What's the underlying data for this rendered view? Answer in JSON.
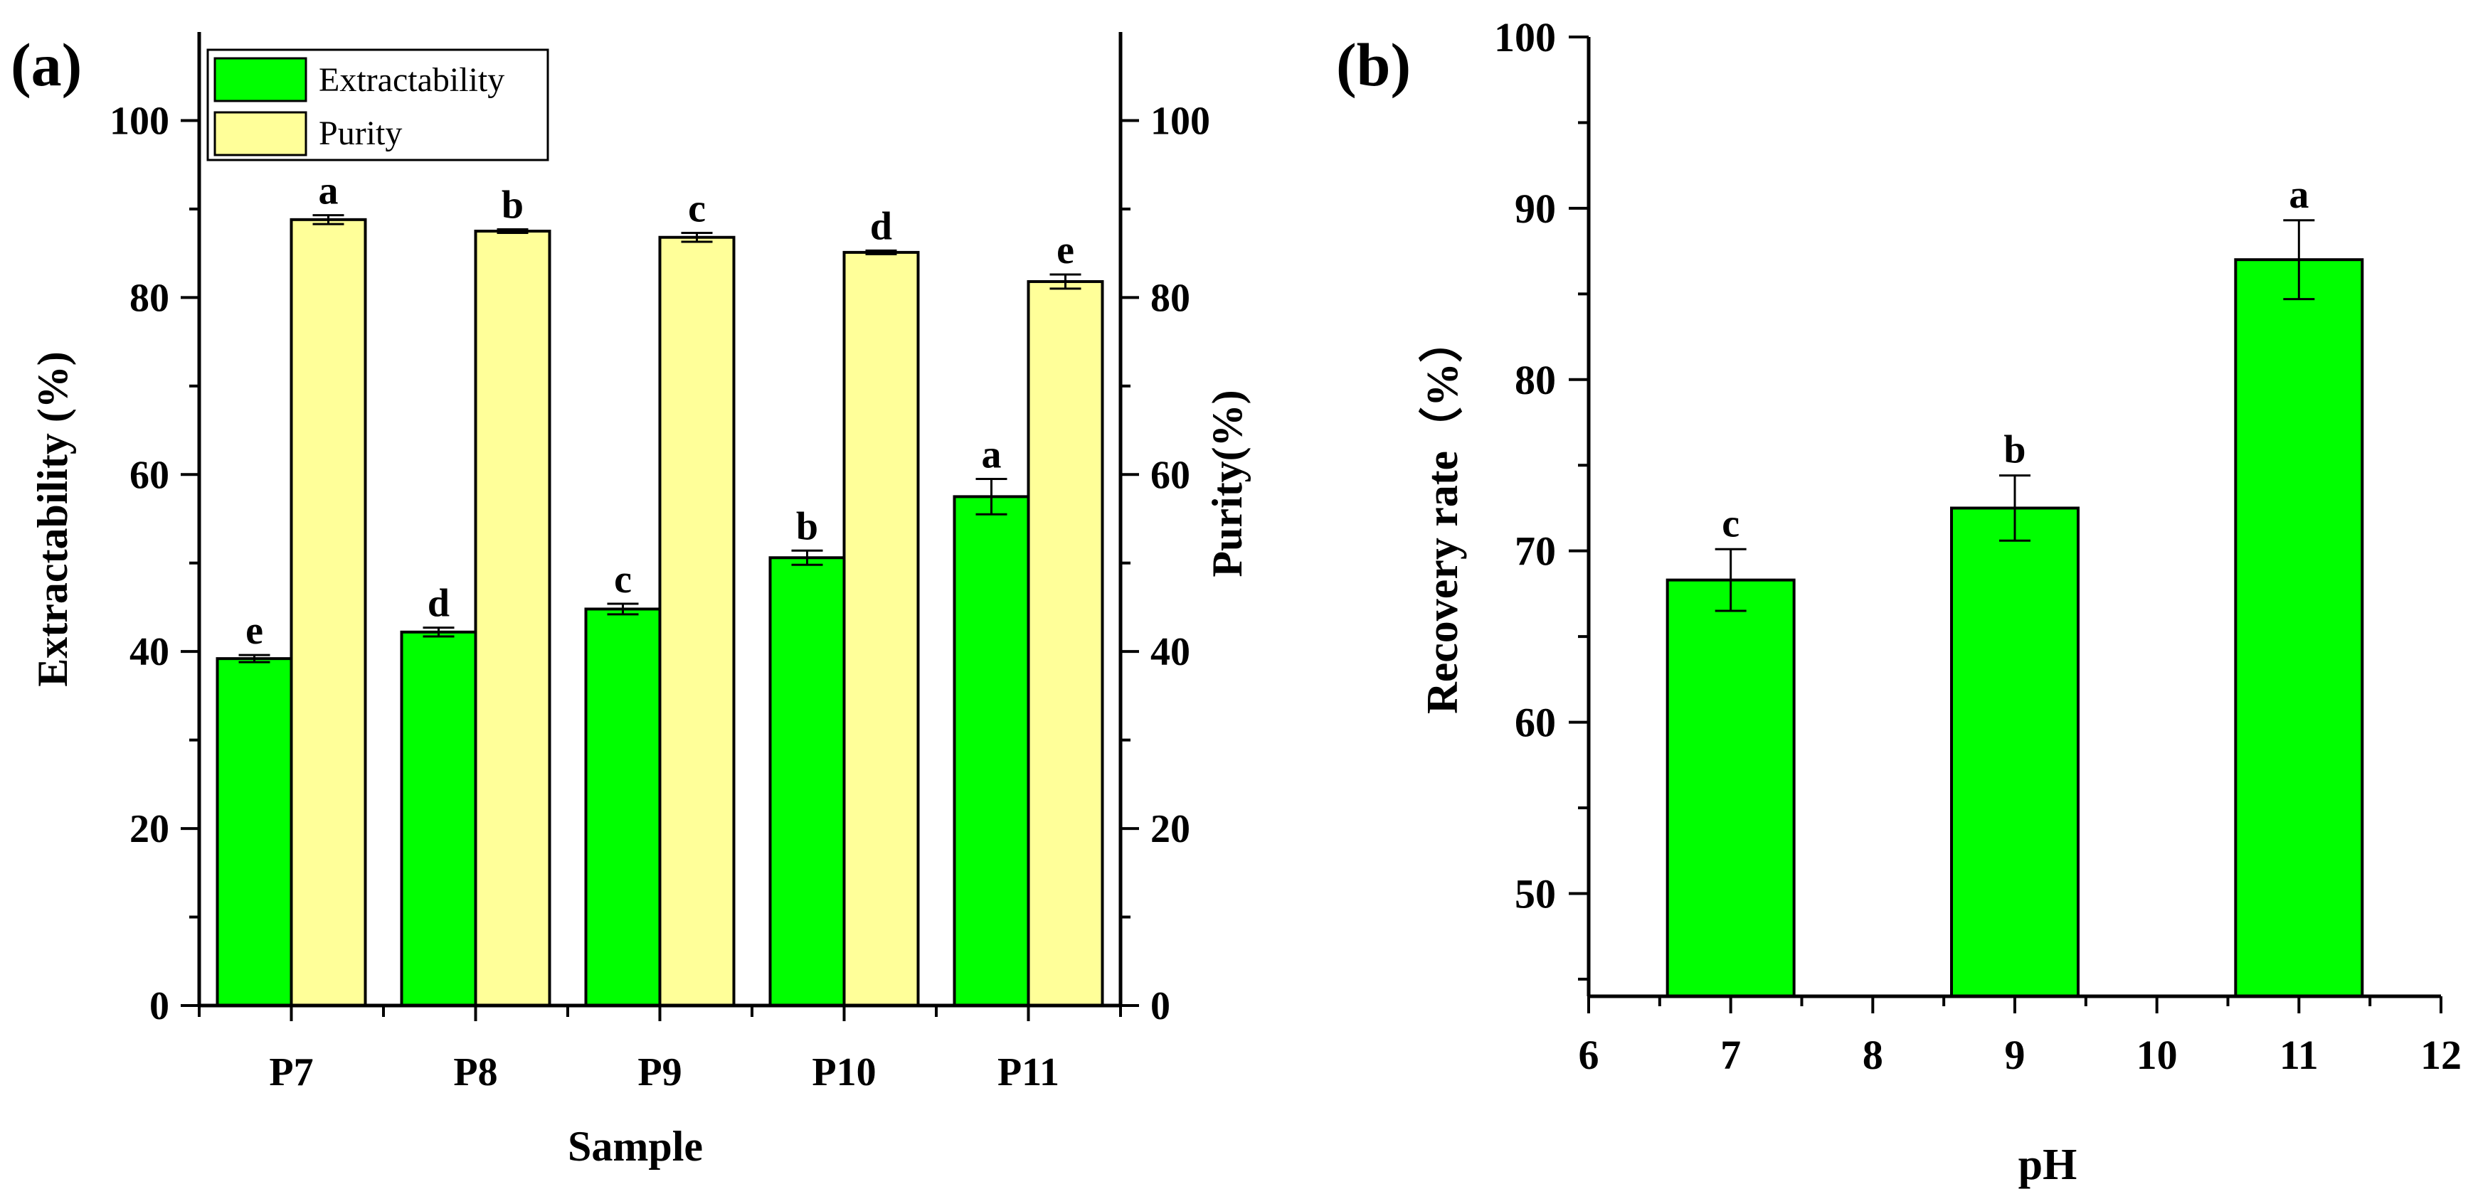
{
  "chart_data": [
    {
      "type": "bar",
      "panel_label": "(a)",
      "xlabel": "Sample",
      "ylabel": "Extractability (%)",
      "ylabel_right": "Purity(%)",
      "categories": [
        "P7",
        "P8",
        "P9",
        "P10",
        "P11"
      ],
      "ylim": [
        0,
        110
      ],
      "yticks": [
        0,
        20,
        40,
        60,
        80,
        100
      ],
      "legend_position": "top-left",
      "series": [
        {
          "name": "Extractability",
          "color": "#00ff00",
          "values": [
            39.2,
            42.2,
            44.8,
            50.6,
            57.5
          ],
          "errors": [
            0.4,
            0.5,
            0.6,
            0.8,
            2.0
          ],
          "labels": [
            "e",
            "d",
            "c",
            "b",
            "a"
          ]
        },
        {
          "name": "Purity",
          "color": "#ffff99",
          "values": [
            88.8,
            87.5,
            86.8,
            85.1,
            81.8
          ],
          "errors": [
            0.5,
            0.2,
            0.5,
            0.2,
            0.8
          ],
          "labels": [
            "a",
            "b",
            "c",
            "d",
            "e"
          ]
        }
      ]
    },
    {
      "type": "bar",
      "panel_label": "(b)",
      "xlabel": "pH",
      "ylabel": "Recovery rate（%）",
      "xlim": [
        6,
        12
      ],
      "xticks": [
        6,
        7,
        8,
        9,
        10,
        11,
        12
      ],
      "ylim": [
        44,
        100
      ],
      "yticks": [
        50,
        60,
        70,
        80,
        90,
        100
      ],
      "series": [
        {
          "name": "Recovery rate",
          "color": "#00ff00",
          "x": [
            7,
            9,
            11
          ],
          "values": [
            68.3,
            72.5,
            87.0
          ],
          "errors": [
            1.8,
            1.9,
            2.3
          ],
          "labels": [
            "c",
            "b",
            "a"
          ]
        }
      ]
    }
  ]
}
